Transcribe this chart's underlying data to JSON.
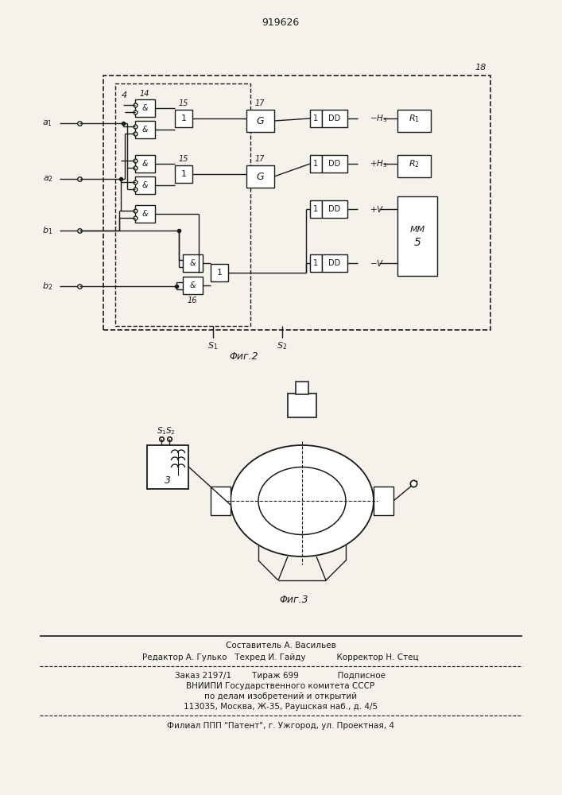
{
  "patent_number": "919626",
  "fig2_label": "Φиг.2",
  "fig3_label": "Φиг.3",
  "bg_color": "#f5f2ec",
  "line_color": "#1a1a1a",
  "footer_lines": [
    "Составитель А. Васильев",
    "Редактор А. Гулько   Техред И. Гайду            Корректор Н. Стец",
    "Заказ 2197/1        Тираж 699               Подписное",
    "ВНИИПИ Государственного комитета СССР",
    "по делам изобретений и открытий",
    "113035, Москва, Ж-35, Раушская наб., д. 4/5",
    "Филиал ППП \"Патент\", г. Ужгород, ул. Проектная, 4"
  ]
}
